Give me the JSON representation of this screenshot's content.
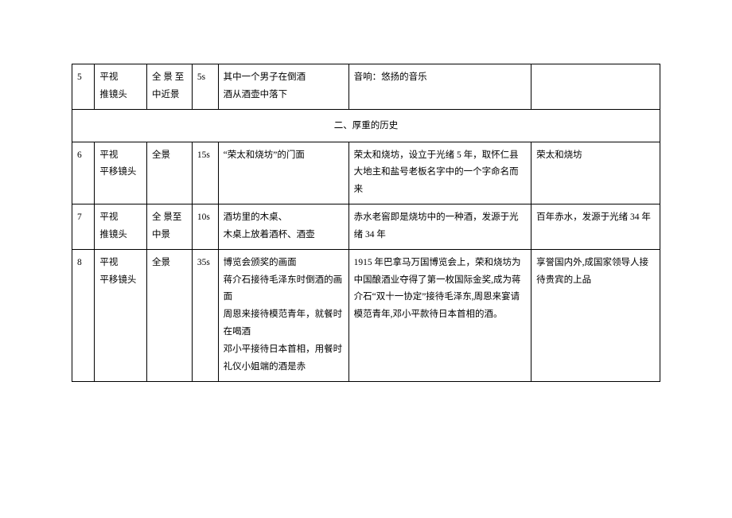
{
  "rows": {
    "r5": {
      "num": "5",
      "view": "平视\n推镜头",
      "shot": "全 景 至中近景",
      "dur": "5s",
      "scene": "其中一个男子在倒酒\n酒从酒壶中落下",
      "narr": "音响：悠扬的音乐",
      "note": ""
    },
    "section": "二、厚重的历史",
    "r6": {
      "num": "6",
      "view": "平视\n平移镜头",
      "shot": "全景",
      "dur": "15s",
      "scene": "“荣太和烧坊”的门面",
      "narr": "荣太和烧坊，设立于光绪 5 年，取怀仁县大地主和盐号老板名字中的一个字命名而来",
      "note": "荣太和烧坊"
    },
    "r7": {
      "num": "7",
      "view": "平视\n推镜头",
      "shot": "全 景至 中景",
      "dur": "10s",
      "scene": "酒坊里的木桌、\n木桌上放着酒杯、酒壶",
      "narr": "赤水老窖即是烧坊中的一种酒，发源于光绪 34 年",
      "note": "百年赤水，发源于光绪 34 年"
    },
    "r8": {
      "num": "8",
      "view": "平视\n平移镜头",
      "shot": "全景",
      "dur": "35s",
      "scene": "博览会颁奖的画面\n蒋介石接待毛泽东时倒酒的画面\n周恩来接待模范青年，就餐时在喝酒\n邓小平接待日本首相，用餐时礼仪小姐端的酒是赤",
      "narr": "1915 年巴拿马万国博览会上，荣和烧坊为中国酿酒业夺得了第一枚国际金奖,成为蒋介石“双十一协定”接待毛泽东,周恩来宴请模范青年,邓小平款待日本首相的酒。",
      "note": "享誉国内外,成国家领导人接待贵宾的上品"
    }
  }
}
